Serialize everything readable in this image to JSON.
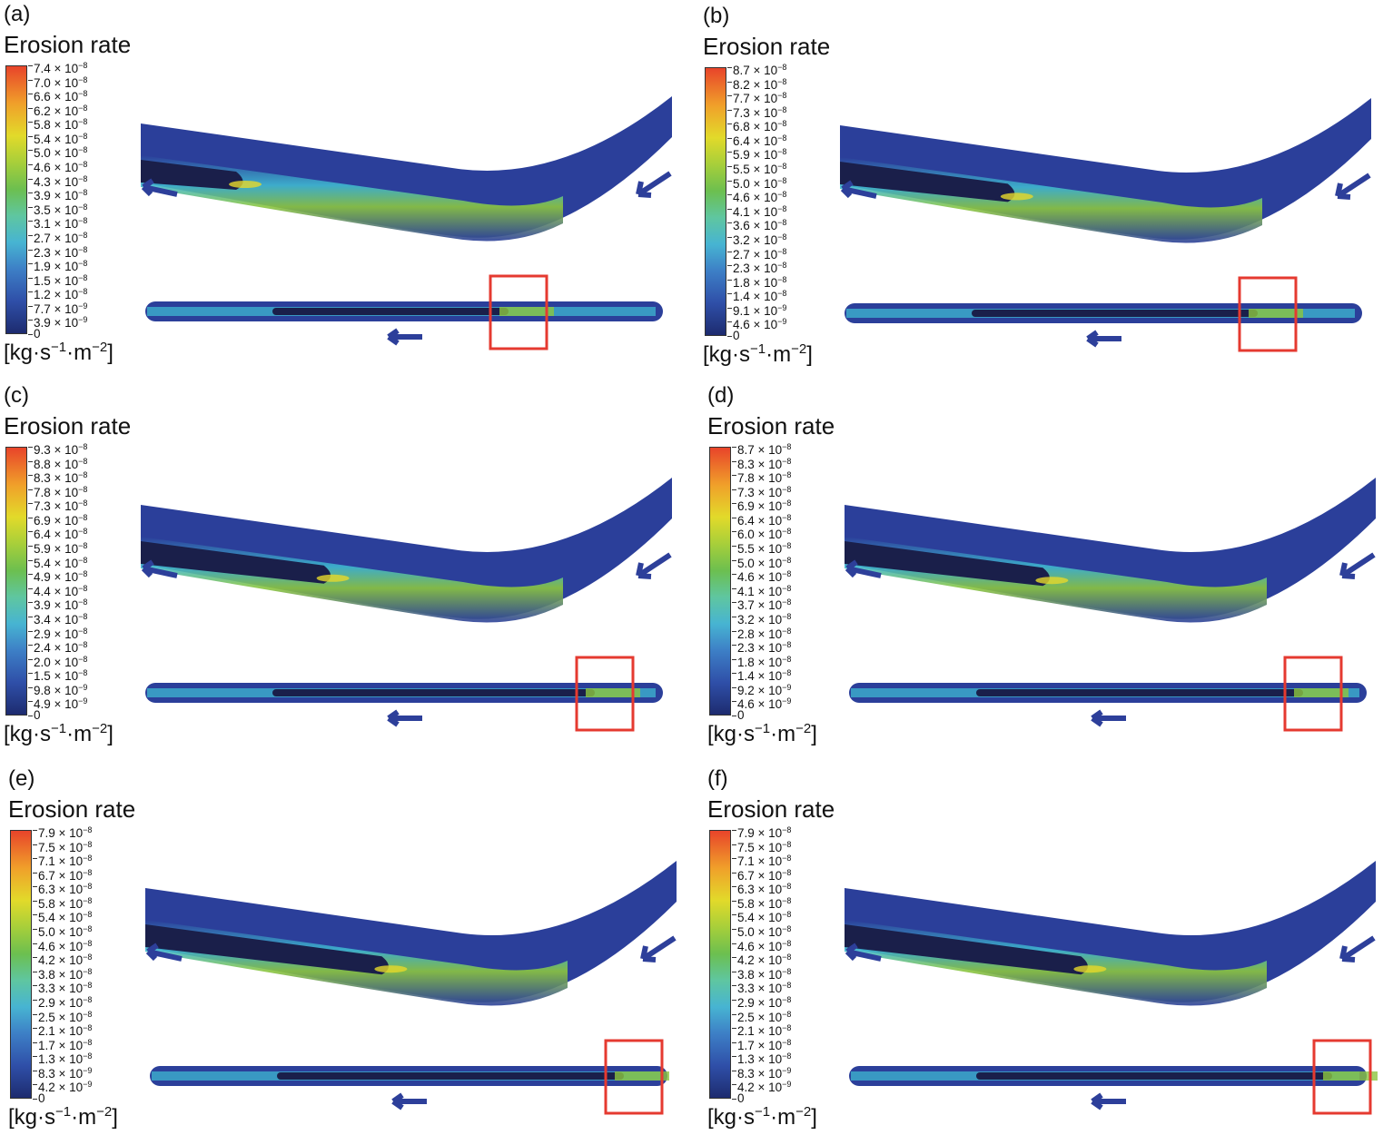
{
  "legend_title": "Erosion rate",
  "units": {
    "prefix": "[kg·s",
    "s_exp": "−1",
    "mid": "·m",
    "m_exp": "−2",
    "suffix": "]"
  },
  "colors": {
    "pipe_dark": "#1a1f4a",
    "pipe_base": "#2b3f9a",
    "cyan": "#3fb8d0",
    "green": "#8cc63f",
    "yellow": "#e6d82a",
    "red": "#e83a2a",
    "highlight_box": "#e53a30",
    "arrow": "#2d3f9a"
  },
  "panels": [
    {
      "label": "(a)",
      "ticks": [
        [
          "7.4 × 10",
          "−8"
        ],
        [
          "7.0 × 10",
          "−8"
        ],
        [
          "6.6 × 10",
          "−8"
        ],
        [
          "6.2 × 10",
          "−8"
        ],
        [
          "5.8 × 10",
          "−8"
        ],
        [
          "5.4 × 10",
          "−8"
        ],
        [
          "5.0 × 10",
          "−8"
        ],
        [
          "4.6 × 10",
          "−8"
        ],
        [
          "4.3 × 10",
          "−8"
        ],
        [
          "3.9 × 10",
          "−8"
        ],
        [
          "3.5 × 10",
          "−8"
        ],
        [
          "3.1 × 10",
          "−8"
        ],
        [
          "2.7 × 10",
          "−8"
        ],
        [
          "2.3 × 10",
          "−8"
        ],
        [
          "1.9 × 10",
          "−8"
        ],
        [
          "1.5 × 10",
          "−8"
        ],
        [
          "1.2 × 10",
          "−8"
        ],
        [
          "7.7 × 10",
          "−9"
        ],
        [
          "3.9 × 10",
          "−9"
        ],
        [
          "0",
          ""
        ]
      ]
    },
    {
      "label": "(b)",
      "ticks": [
        [
          "8.7 × 10",
          "−8"
        ],
        [
          "8.2 × 10",
          "−8"
        ],
        [
          "7.7 × 10",
          "−8"
        ],
        [
          "7.3 × 10",
          "−8"
        ],
        [
          "6.8 × 10",
          "−8"
        ],
        [
          "6.4 × 10",
          "−8"
        ],
        [
          "5.9 × 10",
          "−8"
        ],
        [
          "5.5 × 10",
          "−8"
        ],
        [
          "5.0 × 10",
          "−8"
        ],
        [
          "4.6 × 10",
          "−8"
        ],
        [
          "4.1 × 10",
          "−8"
        ],
        [
          "3.6 × 10",
          "−8"
        ],
        [
          "3.2 × 10",
          "−8"
        ],
        [
          "2.7 × 10",
          "−8"
        ],
        [
          "2.3 × 10",
          "−8"
        ],
        [
          "1.8 × 10",
          "−8"
        ],
        [
          "1.4 × 10",
          "−8"
        ],
        [
          "9.1 × 10",
          "−9"
        ],
        [
          "4.6 × 10",
          "−9"
        ],
        [
          "0",
          ""
        ]
      ]
    },
    {
      "label": "(c)",
      "ticks": [
        [
          "9.3 × 10",
          "−8"
        ],
        [
          "8.8 × 10",
          "−8"
        ],
        [
          "8.3 × 10",
          "−8"
        ],
        [
          "7.8 × 10",
          "−8"
        ],
        [
          "7.3 × 10",
          "−8"
        ],
        [
          "6.9 × 10",
          "−8"
        ],
        [
          "6.4 × 10",
          "−8"
        ],
        [
          "5.9 × 10",
          "−8"
        ],
        [
          "5.4 × 10",
          "−8"
        ],
        [
          "4.9 × 10",
          "−8"
        ],
        [
          "4.4 × 10",
          "−8"
        ],
        [
          "3.9 × 10",
          "−8"
        ],
        [
          "3.4 × 10",
          "−8"
        ],
        [
          "2.9 × 10",
          "−8"
        ],
        [
          "2.4 × 10",
          "−8"
        ],
        [
          "2.0 × 10",
          "−8"
        ],
        [
          "1.5 × 10",
          "−8"
        ],
        [
          "9.8 × 10",
          "−9"
        ],
        [
          "4.9 × 10",
          "−9"
        ],
        [
          "0",
          ""
        ]
      ]
    },
    {
      "label": "(d)",
      "ticks": [
        [
          "8.7 × 10",
          "−8"
        ],
        [
          "8.3 × 10",
          "−8"
        ],
        [
          "7.8 × 10",
          "−8"
        ],
        [
          "7.3 × 10",
          "−8"
        ],
        [
          "6.9 × 10",
          "−8"
        ],
        [
          "6.4 × 10",
          "−8"
        ],
        [
          "6.0 × 10",
          "−8"
        ],
        [
          "5.5 × 10",
          "−8"
        ],
        [
          "5.0 × 10",
          "−8"
        ],
        [
          "4.6 × 10",
          "−8"
        ],
        [
          "4.1 × 10",
          "−8"
        ],
        [
          "3.7 × 10",
          "−8"
        ],
        [
          "3.2 × 10",
          "−8"
        ],
        [
          "2.8 × 10",
          "−8"
        ],
        [
          "2.3 × 10",
          "−8"
        ],
        [
          "1.8 × 10",
          "−8"
        ],
        [
          "1.4 × 10",
          "−8"
        ],
        [
          "9.2 × 10",
          "−9"
        ],
        [
          "4.6 × 10",
          "−9"
        ],
        [
          "0",
          ""
        ]
      ]
    },
    {
      "label": "(e)",
      "ticks": [
        [
          "7.9 × 10",
          "−8"
        ],
        [
          "7.5 × 10",
          "−8"
        ],
        [
          "7.1 × 10",
          "−8"
        ],
        [
          "6.7 × 10",
          "−8"
        ],
        [
          "6.3 × 10",
          "−8"
        ],
        [
          "5.8 × 10",
          "−8"
        ],
        [
          "5.4 × 10",
          "−8"
        ],
        [
          "5.0 × 10",
          "−8"
        ],
        [
          "4.6 × 10",
          "−8"
        ],
        [
          "4.2 × 10",
          "−8"
        ],
        [
          "3.8 × 10",
          "−8"
        ],
        [
          "3.3 × 10",
          "−8"
        ],
        [
          "2.9 × 10",
          "−8"
        ],
        [
          "2.5 × 10",
          "−8"
        ],
        [
          "2.1 × 10",
          "−8"
        ],
        [
          "1.7 × 10",
          "−8"
        ],
        [
          "1.3 × 10",
          "−8"
        ],
        [
          "8.3 × 10",
          "−9"
        ],
        [
          "4.2 × 10",
          "−9"
        ],
        [
          "0",
          ""
        ]
      ]
    },
    {
      "label": "(f)",
      "ticks": [
        [
          "7.9 × 10",
          "−8"
        ],
        [
          "7.5 × 10",
          "−8"
        ],
        [
          "7.1 × 10",
          "−8"
        ],
        [
          "6.7 × 10",
          "−8"
        ],
        [
          "6.3 × 10",
          "−8"
        ],
        [
          "5.8 × 10",
          "−8"
        ],
        [
          "5.4 × 10",
          "−8"
        ],
        [
          "5.0 × 10",
          "−8"
        ],
        [
          "4.6 × 10",
          "−8"
        ],
        [
          "4.2 × 10",
          "−8"
        ],
        [
          "3.8 × 10",
          "−8"
        ],
        [
          "3.3 × 10",
          "−8"
        ],
        [
          "2.9 × 10",
          "−8"
        ],
        [
          "2.5 × 10",
          "−8"
        ],
        [
          "2.1 × 10",
          "−8"
        ],
        [
          "1.7 × 10",
          "−8"
        ],
        [
          "1.3 × 10",
          "−8"
        ],
        [
          "8.3 × 10",
          "−9"
        ],
        [
          "4.2 × 10",
          "−9"
        ],
        [
          "0",
          ""
        ]
      ]
    }
  ]
}
